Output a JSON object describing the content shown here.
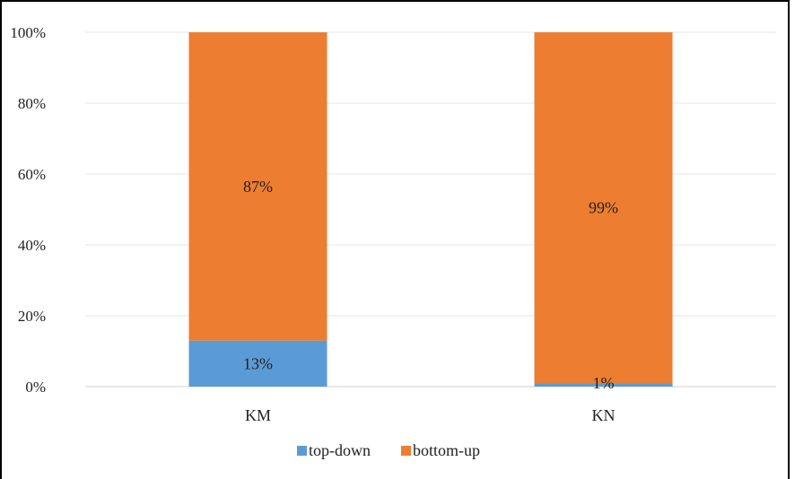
{
  "chart_data": {
    "type": "bar",
    "stacked": true,
    "percent": true,
    "categories": [
      "KM",
      "KN"
    ],
    "series": [
      {
        "name": "top-down",
        "values": [
          13,
          1
        ],
        "labels": [
          "13%",
          "1%"
        ],
        "color": "#5b9bd5"
      },
      {
        "name": "bottom-up",
        "values": [
          87,
          99
        ],
        "labels": [
          "87%",
          "99%"
        ],
        "color": "#ed7d31"
      }
    ],
    "y_ticks": [
      "0%",
      "20%",
      "40%",
      "60%",
      "80%",
      "100%"
    ],
    "ylim": [
      0,
      100
    ],
    "grid": true,
    "legend_position": "bottom"
  }
}
